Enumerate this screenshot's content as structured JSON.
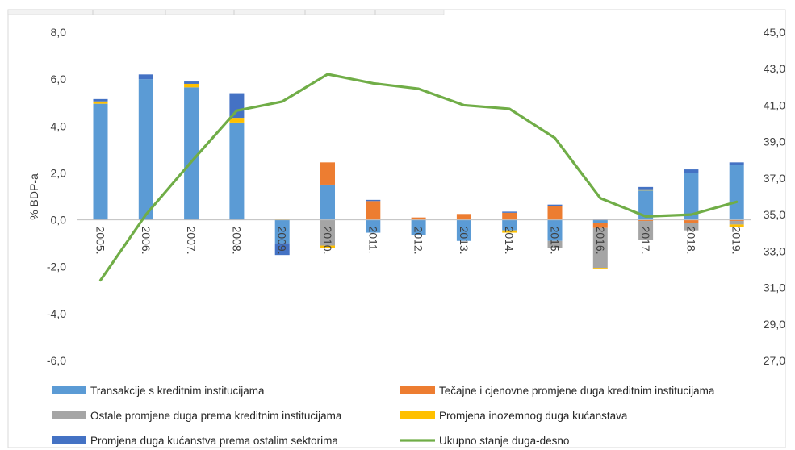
{
  "chart_data": {
    "type": "bar",
    "stacked": true,
    "ylabel": "% BDP-a",
    "y_left": {
      "min": -6,
      "max": 8,
      "ticks": [
        "-6,0",
        "-4,0",
        "-2,0",
        "0,0",
        "2,0",
        "4,0",
        "6,0",
        "8,0"
      ]
    },
    "y_right": {
      "min": 27,
      "max": 45,
      "ticks": [
        "27,0",
        "29,0",
        "31,0",
        "33,0",
        "35,0",
        "37,0",
        "39,0",
        "41,0",
        "43,0",
        "45,0"
      ]
    },
    "categories": [
      "2005.",
      "2006.",
      "2007.",
      "2008.",
      "2009.",
      "2010.",
      "2011.",
      "2012.",
      "2013.",
      "2014.",
      "2015.",
      "2016.",
      "2017.",
      "2018.",
      "2019."
    ],
    "series": [
      {
        "name": "Transakcije s kreditnim institucijama",
        "color": "#5b9bd5",
        "values": [
          4.95,
          6.0,
          5.65,
          4.15,
          -1.0,
          1.5,
          -0.55,
          -0.65,
          -0.9,
          -0.45,
          -0.9,
          -0.15,
          1.25,
          2.0,
          2.35
        ]
      },
      {
        "name": "Tečajne i cjenovne promjene duga kreditnim institucijama",
        "color": "#ed7d31",
        "values": [
          0.0,
          0.0,
          0.0,
          0.0,
          0.0,
          0.95,
          0.8,
          0.1,
          0.25,
          0.3,
          0.6,
          -0.2,
          -0.05,
          -0.15,
          -0.05
        ]
      },
      {
        "name": "Ostale promjene duga prema kreditnim institucijama",
        "color": "#a5a5a5",
        "values": [
          0.0,
          0.0,
          0.0,
          0.0,
          0.0,
          -1.1,
          0.0,
          0.0,
          0.0,
          0.0,
          -0.3,
          -1.7,
          -0.8,
          -0.3,
          -0.15
        ]
      },
      {
        "name": "Promjena inozemnog duga kućanstava",
        "color": "#ffc000",
        "values": [
          0.1,
          0.0,
          0.15,
          0.2,
          0.05,
          -0.1,
          0.0,
          0.0,
          0.0,
          -0.1,
          0.0,
          -0.05,
          0.05,
          0.0,
          -0.1
        ]
      },
      {
        "name": "Promjena duga kućanstva prema ostalim sektorima",
        "color": "#4472c4",
        "values": [
          0.1,
          0.2,
          0.1,
          1.05,
          -0.5,
          0.0,
          0.05,
          0.0,
          0.0,
          0.05,
          0.05,
          0.05,
          0.1,
          0.15,
          0.1
        ]
      }
    ],
    "line": {
      "name": "Ukupno stanje duga-desno",
      "color": "#70ad47",
      "axis": "right",
      "values": [
        31.4,
        35.0,
        37.9,
        40.7,
        41.2,
        42.7,
        42.2,
        41.9,
        41.0,
        40.8,
        39.2,
        35.9,
        34.9,
        35.0,
        35.7
      ]
    },
    "legend_position": "bottom",
    "grid": false
  }
}
